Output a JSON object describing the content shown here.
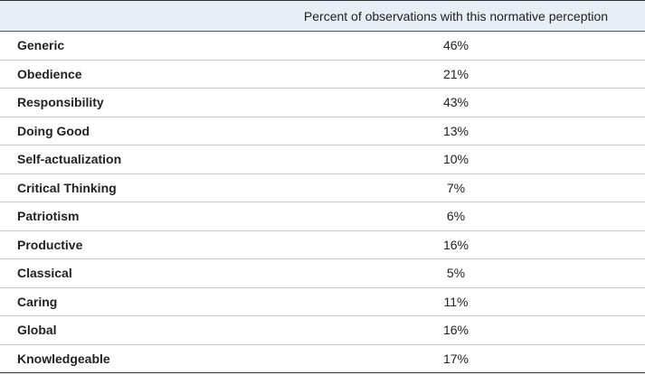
{
  "table": {
    "header": [
      "",
      "Percent of observations with this normative perception"
    ],
    "rows": [
      [
        "Generic",
        "46%"
      ],
      [
        "Obedience",
        "21%"
      ],
      [
        "Responsibility",
        "43%"
      ],
      [
        "Doing Good",
        "13%"
      ],
      [
        "Self-actualization",
        "10%"
      ],
      [
        "Critical Thinking",
        "7%"
      ],
      [
        "Patriotism",
        "6%"
      ],
      [
        "Productive",
        "16%"
      ],
      [
        "Classical",
        "5%"
      ],
      [
        "Caring",
        "11%"
      ],
      [
        "Global",
        "16%"
      ],
      [
        "Knowledgeable",
        "17%"
      ]
    ]
  }
}
